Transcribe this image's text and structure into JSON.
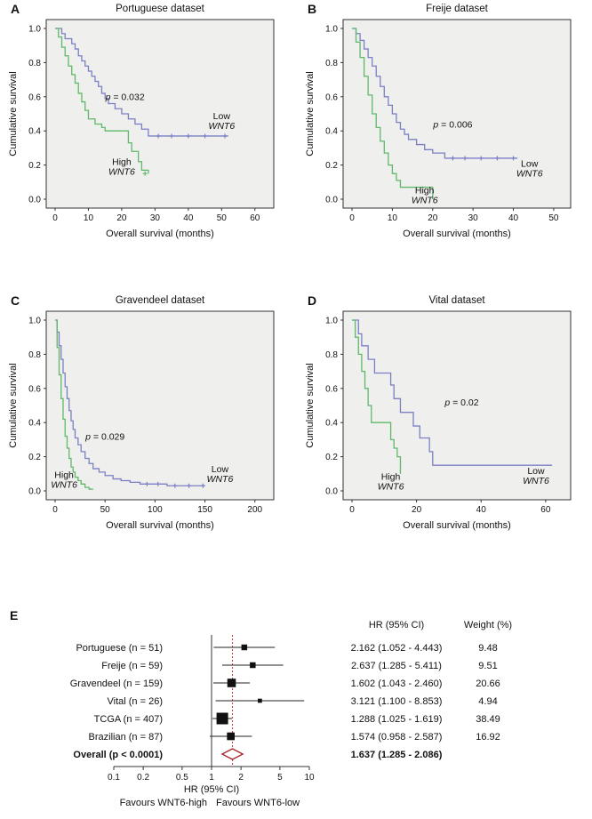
{
  "colors": {
    "low_line": "#7b80c4",
    "high_line": "#5fb96a",
    "plot_bg": "#efefed",
    "axis": "#333333",
    "ref_line": "#cc3333",
    "overall_diamond": "#aa2222"
  },
  "chart_data": [
    {
      "type": "km",
      "panel": "A",
      "title": "Portuguese dataset",
      "xlabel": "Overall survival (months)",
      "ylabel": "Cumulative survival",
      "xmax": 63,
      "xticks": [
        0,
        10,
        20,
        30,
        40,
        50,
        60
      ],
      "yticks": [
        0.0,
        0.2,
        0.4,
        0.6,
        0.8,
        1.0
      ],
      "p_text": "p = 0.032",
      "p_pos": [
        21,
        0.58
      ],
      "series": [
        {
          "name": "Low WNT6",
          "color_key": "low_line",
          "label_lines": [
            "Low",
            "WNT6"
          ],
          "label_pos": [
            50,
            0.47
          ],
          "points": [
            [
              0,
              1.0
            ],
            [
              2,
              0.97
            ],
            [
              3,
              0.94
            ],
            [
              5,
              0.91
            ],
            [
              6,
              0.88
            ],
            [
              7,
              0.84
            ],
            [
              8,
              0.81
            ],
            [
              9,
              0.78
            ],
            [
              10,
              0.75
            ],
            [
              11,
              0.72
            ],
            [
              12,
              0.69
            ],
            [
              13,
              0.66
            ],
            [
              14,
              0.62
            ],
            [
              15,
              0.59
            ],
            [
              16,
              0.56
            ],
            [
              18,
              0.53
            ],
            [
              20,
              0.5
            ],
            [
              22,
              0.47
            ],
            [
              24,
              0.44
            ],
            [
              26,
              0.41
            ],
            [
              28,
              0.37
            ],
            [
              52,
              0.37
            ]
          ],
          "censors": [
            [
              31,
              0.37
            ],
            [
              35,
              0.37
            ],
            [
              40,
              0.37
            ],
            [
              45,
              0.37
            ],
            [
              51,
              0.37
            ]
          ]
        },
        {
          "name": "High WNT6",
          "color_key": "high_line",
          "label_lines": [
            "High",
            "WNT6"
          ],
          "label_pos": [
            20,
            0.2
          ],
          "points": [
            [
              0,
              1.0
            ],
            [
              1,
              0.95
            ],
            [
              2,
              0.89
            ],
            [
              3,
              0.84
            ],
            [
              4,
              0.78
            ],
            [
              5,
              0.73
            ],
            [
              6,
              0.68
            ],
            [
              7,
              0.62
            ],
            [
              8,
              0.57
            ],
            [
              9,
              0.52
            ],
            [
              10,
              0.47
            ],
            [
              12,
              0.44
            ],
            [
              14,
              0.42
            ],
            [
              15,
              0.4
            ],
            [
              21,
              0.4
            ],
            [
              22,
              0.33
            ],
            [
              23,
              0.28
            ],
            [
              25,
              0.22
            ],
            [
              26,
              0.17
            ],
            [
              28,
              0.15
            ]
          ],
          "censors": [
            [
              27,
              0.15
            ]
          ]
        }
      ]
    },
    {
      "type": "km",
      "panel": "B",
      "title": "Freije dataset",
      "xlabel": "Overall survival (months)",
      "ylabel": "Cumulative survival",
      "xmax": 52,
      "xticks": [
        0,
        10,
        20,
        30,
        40,
        50
      ],
      "yticks": [
        0.0,
        0.2,
        0.4,
        0.6,
        0.8,
        1.0
      ],
      "p_text": "p = 0.006",
      "p_pos": [
        25,
        0.42
      ],
      "series": [
        {
          "name": "Low WNT6",
          "color_key": "low_line",
          "label_lines": [
            "Low",
            "WNT6"
          ],
          "label_pos": [
            44,
            0.19
          ],
          "points": [
            [
              0,
              1.0
            ],
            [
              1,
              0.97
            ],
            [
              2,
              0.93
            ],
            [
              3,
              0.88
            ],
            [
              4,
              0.83
            ],
            [
              5,
              0.78
            ],
            [
              6,
              0.72
            ],
            [
              7,
              0.66
            ],
            [
              8,
              0.6
            ],
            [
              9,
              0.55
            ],
            [
              10,
              0.5
            ],
            [
              11,
              0.45
            ],
            [
              12,
              0.41
            ],
            [
              13,
              0.38
            ],
            [
              14,
              0.35
            ],
            [
              16,
              0.32
            ],
            [
              18,
              0.29
            ],
            [
              20,
              0.27
            ],
            [
              23,
              0.24
            ],
            [
              41,
              0.24
            ]
          ],
          "censors": [
            [
              25,
              0.24
            ],
            [
              28,
              0.24
            ],
            [
              32,
              0.24
            ],
            [
              36,
              0.24
            ],
            [
              40,
              0.24
            ]
          ]
        },
        {
          "name": "High WNT6",
          "color_key": "high_line",
          "label_lines": [
            "High",
            "WNT6"
          ],
          "label_pos": [
            18,
            0.035
          ],
          "points": [
            [
              0,
              1.0
            ],
            [
              1,
              0.92
            ],
            [
              2,
              0.83
            ],
            [
              3,
              0.72
            ],
            [
              4,
              0.61
            ],
            [
              5,
              0.5
            ],
            [
              6,
              0.42
            ],
            [
              7,
              0.34
            ],
            [
              8,
              0.27
            ],
            [
              9,
              0.2
            ],
            [
              10,
              0.15
            ],
            [
              11,
              0.11
            ],
            [
              12,
              0.07
            ],
            [
              19,
              0.07
            ],
            [
              20,
              0.0
            ]
          ],
          "censors": []
        }
      ]
    },
    {
      "type": "km",
      "panel": "C",
      "title": "Gravendeel dataset",
      "xlabel": "Overall survival (months)",
      "ylabel": "Cumulative survival",
      "xmax": 210,
      "xticks": [
        0,
        50,
        100,
        150,
        200
      ],
      "yticks": [
        0.0,
        0.2,
        0.4,
        0.6,
        0.8,
        1.0
      ],
      "p_text": "p = 0.029",
      "p_pos": [
        50,
        0.3
      ],
      "series": [
        {
          "name": "Low WNT6",
          "color_key": "low_line",
          "label_lines": [
            "Low",
            "WNT6"
          ],
          "label_pos": [
            165,
            0.11
          ],
          "points": [
            [
              0,
              1.0
            ],
            [
              2,
              0.93
            ],
            [
              4,
              0.85
            ],
            [
              6,
              0.77
            ],
            [
              8,
              0.69
            ],
            [
              10,
              0.61
            ],
            [
              12,
              0.54
            ],
            [
              14,
              0.47
            ],
            [
              16,
              0.41
            ],
            [
              18,
              0.36
            ],
            [
              20,
              0.31
            ],
            [
              23,
              0.27
            ],
            [
              26,
              0.23
            ],
            [
              30,
              0.19
            ],
            [
              34,
              0.16
            ],
            [
              38,
              0.13
            ],
            [
              44,
              0.11
            ],
            [
              50,
              0.09
            ],
            [
              58,
              0.07
            ],
            [
              66,
              0.06
            ],
            [
              75,
              0.05
            ],
            [
              85,
              0.04
            ],
            [
              110,
              0.04
            ],
            [
              112,
              0.03
            ],
            [
              150,
              0.03
            ]
          ],
          "censors": [
            [
              92,
              0.04
            ],
            [
              103,
              0.04
            ],
            [
              120,
              0.03
            ],
            [
              134,
              0.03
            ],
            [
              148,
              0.03
            ]
          ]
        },
        {
          "name": "High WNT6",
          "color_key": "high_line",
          "label_lines": [
            "High",
            "WNT6"
          ],
          "label_pos": [
            9,
            0.075
          ],
          "points": [
            [
              0,
              1.0
            ],
            [
              2,
              0.84
            ],
            [
              4,
              0.68
            ],
            [
              6,
              0.54
            ],
            [
              8,
              0.42
            ],
            [
              10,
              0.32
            ],
            [
              12,
              0.25
            ],
            [
              14,
              0.19
            ],
            [
              16,
              0.14
            ],
            [
              18,
              0.11
            ],
            [
              20,
              0.08
            ],
            [
              23,
              0.06
            ],
            [
              26,
              0.04
            ],
            [
              30,
              0.02
            ],
            [
              34,
              0.01
            ],
            [
              38,
              0.01
            ]
          ],
          "censors": []
        }
      ]
    },
    {
      "type": "km",
      "panel": "D",
      "title": "Vital dataset",
      "xlabel": "Overall survival (months)",
      "ylabel": "Cumulative survival",
      "xmax": 65,
      "xticks": [
        0,
        20,
        40,
        60
      ],
      "yticks": [
        0.0,
        0.2,
        0.4,
        0.6,
        0.8,
        1.0
      ],
      "p_text": "p = 0.02",
      "p_pos": [
        34,
        0.5
      ],
      "series": [
        {
          "name": "Low WNT6",
          "color_key": "low_line",
          "label_lines": [
            "Low",
            "WNT6"
          ],
          "label_pos": [
            57,
            0.1
          ],
          "points": [
            [
              0,
              1.0
            ],
            [
              2,
              0.92
            ],
            [
              3,
              0.85
            ],
            [
              5,
              0.77
            ],
            [
              7,
              0.69
            ],
            [
              12,
              0.62
            ],
            [
              13,
              0.54
            ],
            [
              15,
              0.46
            ],
            [
              19,
              0.38
            ],
            [
              21,
              0.31
            ],
            [
              24,
              0.23
            ],
            [
              25,
              0.15
            ],
            [
              62,
              0.15
            ]
          ],
          "censors": []
        },
        {
          "name": "High WNT6",
          "color_key": "high_line",
          "label_lines": [
            "High",
            "WNT6"
          ],
          "label_pos": [
            12,
            0.065
          ],
          "points": [
            [
              0,
              1.0
            ],
            [
              1,
              0.9
            ],
            [
              2,
              0.8
            ],
            [
              3,
              0.7
            ],
            [
              4,
              0.6
            ],
            [
              5,
              0.5
            ],
            [
              6,
              0.4
            ],
            [
              11,
              0.4
            ],
            [
              12,
              0.3
            ],
            [
              13,
              0.25
            ],
            [
              14,
              0.2
            ],
            [
              15,
              0.1
            ]
          ],
          "censors": []
        }
      ]
    },
    {
      "type": "forest",
      "panel": "E",
      "col_hr": "HR (95% CI)",
      "col_weight": "Weight (%)",
      "rows": [
        {
          "label": "Portuguese (n = 51)",
          "hr": 2.162,
          "lo": 1.052,
          "hi": 4.443,
          "hr_text": "2.162 (1.052 - 4.443)",
          "weight": 9.48,
          "weight_text": "9.48"
        },
        {
          "label": "Freije (n = 59)",
          "hr": 2.637,
          "lo": 1.285,
          "hi": 5.411,
          "hr_text": "2.637 (1.285 - 5.411)",
          "weight": 9.51,
          "weight_text": "9.51"
        },
        {
          "label": "Gravendeel (n = 159)",
          "hr": 1.602,
          "lo": 1.043,
          "hi": 2.46,
          "hr_text": "1.602 (1.043 - 2.460)",
          "weight": 20.66,
          "weight_text": "20.66"
        },
        {
          "label": "Vital (n = 26)",
          "hr": 3.121,
          "lo": 1.1,
          "hi": 8.853,
          "hr_text": "3.121 (1.100 - 8.853)",
          "weight": 4.94,
          "weight_text": "4.94"
        },
        {
          "label": "TCGA (n = 407)",
          "hr": 1.288,
          "lo": 1.025,
          "hi": 1.619,
          "hr_text": "1.288 (1.025 - 1.619)",
          "weight": 38.49,
          "weight_text": "38.49"
        },
        {
          "label": "Brazilian (n = 87)",
          "hr": 1.574,
          "lo": 0.958,
          "hi": 2.587,
          "hr_text": "1.574 (0.958 - 2.587)",
          "weight": 16.92,
          "weight_text": "16.92"
        }
      ],
      "overall": {
        "label": "Overall (p < 0.0001)",
        "hr": 1.637,
        "lo": 1.285,
        "hi": 2.086,
        "hr_text": "1.637 (1.285 - 2.086)"
      },
      "axis_ticks": [
        0.1,
        0.2,
        0.5,
        1,
        2,
        5,
        10
      ],
      "axis_label": "HR (95% CI)",
      "favours_left": "Favours WNT6-high",
      "favours_right": "Favours WNT6-low"
    }
  ]
}
